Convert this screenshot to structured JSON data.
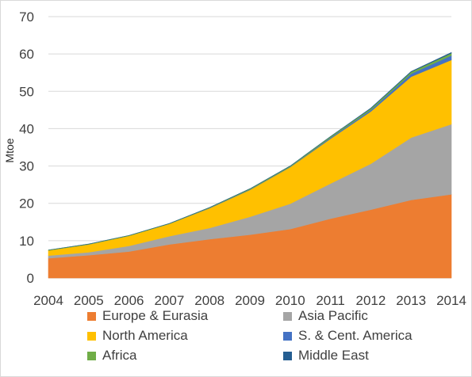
{
  "chart_data": {
    "type": "area",
    "stacked": true,
    "x": [
      2004,
      2005,
      2006,
      2007,
      2008,
      2009,
      2010,
      2011,
      2012,
      2013,
      2014
    ],
    "ylabel": "Mtoe",
    "ylim": [
      0,
      70
    ],
    "yticks": [
      0,
      10,
      20,
      30,
      40,
      50,
      60,
      70
    ],
    "grid": true,
    "legend_position": "bottom",
    "series": [
      {
        "name": "Europe & Eurasia",
        "color": "#ED7D31",
        "values": [
          5.3,
          6.1,
          7.1,
          9.0,
          10.4,
          11.6,
          13.1,
          15.9,
          18.3,
          20.9,
          22.4
        ]
      },
      {
        "name": "Asia Pacific",
        "color": "#A5A5A5",
        "values": [
          0.7,
          0.8,
          1.5,
          2.2,
          3.0,
          4.8,
          6.8,
          9.4,
          12.3,
          16.7,
          18.8
        ]
      },
      {
        "name": "North America",
        "color": "#FFC000",
        "values": [
          1.4,
          2.1,
          2.7,
          3.3,
          5.3,
          7.2,
          9.8,
          12.0,
          14.0,
          16.3,
          17.2
        ]
      },
      {
        "name": "S. & Cent. America",
        "color": "#4472C4",
        "values": [
          0.0,
          0.0,
          0.0,
          0.0,
          0.1,
          0.1,
          0.1,
          0.3,
          0.4,
          0.8,
          1.2
        ]
      },
      {
        "name": "Africa",
        "color": "#70AD47",
        "values": [
          0.1,
          0.1,
          0.1,
          0.1,
          0.1,
          0.2,
          0.2,
          0.3,
          0.4,
          0.5,
          0.6
        ]
      },
      {
        "name": "Middle East",
        "color": "#255E91",
        "values": [
          0.0,
          0.0,
          0.0,
          0.0,
          0.0,
          0.0,
          0.0,
          0.0,
          0.1,
          0.1,
          0.2
        ]
      }
    ]
  }
}
